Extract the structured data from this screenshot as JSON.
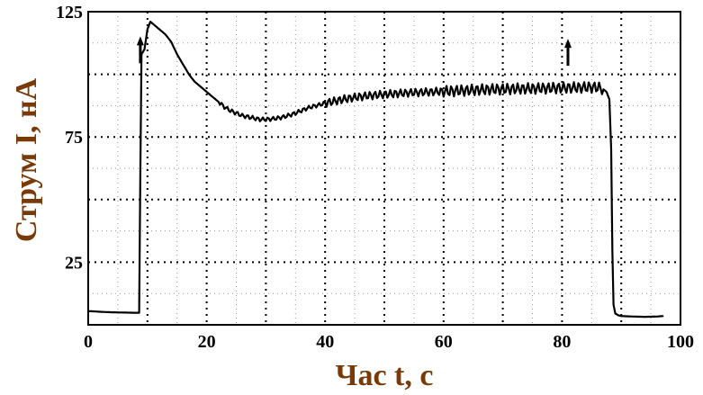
{
  "chart_data": {
    "type": "line",
    "title": "",
    "xlabel": "Час t, с",
    "ylabel": "Струм I, нА",
    "xlim": [
      0,
      100
    ],
    "ylim": [
      0,
      125
    ],
    "xticks": [
      0,
      20,
      40,
      60,
      80,
      100
    ],
    "yticks": [
      25,
      75,
      125
    ],
    "grid": true,
    "legend": "none",
    "line_color": "#000000",
    "axis_title_color": "#7a3a08",
    "annotations": [
      {
        "text": "arrow-up",
        "x": 8.8,
        "y": 108
      },
      {
        "text": "arrow-up",
        "x": 81,
        "y": 107
      }
    ],
    "series": [
      {
        "values": [
          [
            0,
            5.5
          ],
          [
            2,
            5.2
          ],
          [
            4,
            5.0
          ],
          [
            6,
            4.9
          ],
          [
            8,
            4.8
          ],
          [
            8.6,
            4.8
          ],
          [
            8.8,
            60
          ],
          [
            9,
            108
          ],
          [
            9.5,
            110
          ],
          [
            10,
            118
          ],
          [
            10.5,
            121
          ],
          [
            11,
            120
          ],
          [
            12,
            118
          ],
          [
            13,
            116
          ],
          [
            14,
            113
          ],
          [
            15,
            108
          ],
          [
            16,
            104
          ],
          [
            17,
            100
          ],
          [
            18,
            97
          ],
          [
            19,
            95
          ],
          [
            20,
            93
          ],
          [
            21,
            91
          ],
          [
            22,
            89
          ],
          [
            23,
            87
          ],
          [
            24,
            85.5
          ],
          [
            25,
            84.5
          ],
          [
            26,
            83.5
          ],
          [
            27,
            83
          ],
          [
            28,
            82.5
          ],
          [
            29,
            82
          ],
          [
            30,
            82
          ],
          [
            31,
            82.2
          ],
          [
            32,
            82.5
          ],
          [
            33,
            83
          ],
          [
            34,
            83.7
          ],
          [
            35,
            84.5
          ],
          [
            36,
            85.5
          ],
          [
            37,
            86.5
          ],
          [
            38,
            87.2
          ],
          [
            39,
            87.8
          ],
          [
            40,
            88.5
          ],
          [
            41,
            89
          ],
          [
            42,
            89.5
          ],
          [
            43,
            90
          ],
          [
            44,
            90.4
          ],
          [
            45,
            90.8
          ],
          [
            46,
            91.1
          ],
          [
            47,
            91.4
          ],
          [
            48,
            91.6
          ],
          [
            49,
            91.8
          ],
          [
            50,
            92
          ],
          [
            52,
            92.3
          ],
          [
            54,
            92.6
          ],
          [
            56,
            92.8
          ],
          [
            58,
            93
          ],
          [
            60,
            93.2
          ],
          [
            62,
            93.4
          ],
          [
            64,
            93.6
          ],
          [
            66,
            93.8
          ],
          [
            68,
            94
          ],
          [
            70,
            94.1
          ],
          [
            72,
            94.2
          ],
          [
            74,
            94.3
          ],
          [
            76,
            94.4
          ],
          [
            78,
            94.5
          ],
          [
            80,
            94.6
          ],
          [
            82,
            94.7
          ],
          [
            84,
            94.8
          ],
          [
            86,
            94.8
          ],
          [
            87,
            94
          ],
          [
            87.5,
            93
          ],
          [
            88,
            90
          ],
          [
            88.3,
            70
          ],
          [
            88.5,
            30
          ],
          [
            88.7,
            8
          ],
          [
            89,
            4.5
          ],
          [
            89.5,
            3.8
          ],
          [
            90,
            3.5
          ],
          [
            92,
            3.3
          ],
          [
            94,
            3.2
          ],
          [
            96,
            3.3
          ],
          [
            97,
            3.5
          ]
        ]
      }
    ]
  }
}
